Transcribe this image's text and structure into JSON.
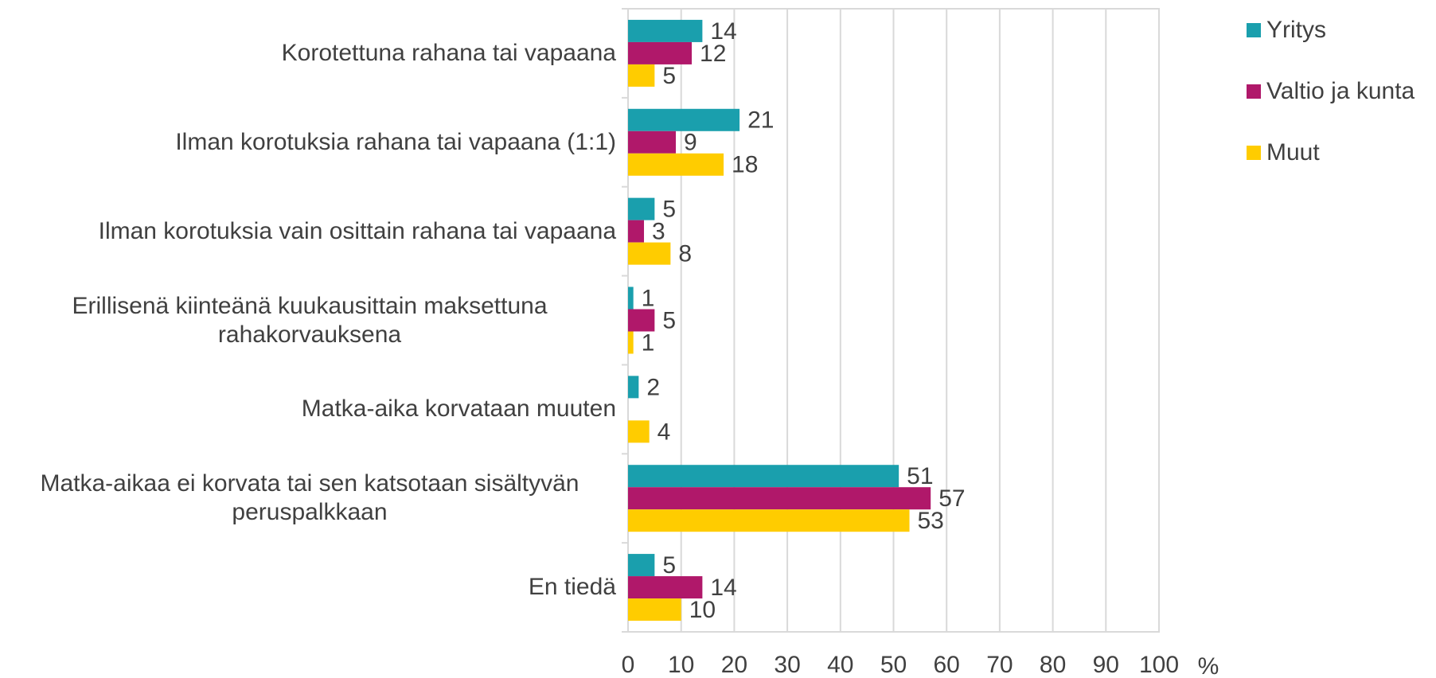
{
  "chart_data": {
    "type": "bar",
    "orientation": "horizontal",
    "categories": [
      "Korotettuna rahana tai vapaana",
      "Ilman korotuksia rahana tai vapaana (1:1)",
      "Ilman korotuksia vain osittain rahana tai vapaana",
      "Erillisenä kiinteänä kuukausittain maksettuna rahakorvauksena",
      "Matka-aika korvataan muuten",
      "Matka-aikaa ei korvata tai sen katsotaan sisältyvän peruspalkkaan",
      "En tiedä"
    ],
    "series": [
      {
        "name": "Yritys",
        "color": "#1a9fad",
        "values": [
          14,
          21,
          5,
          1,
          2,
          51,
          5
        ]
      },
      {
        "name": "Valtio ja kunta",
        "color": "#b0186a",
        "values": [
          12,
          9,
          3,
          5,
          null,
          57,
          14
        ]
      },
      {
        "name": "Muut",
        "color": "#ffcc00",
        "values": [
          5,
          18,
          8,
          1,
          4,
          53,
          10
        ]
      }
    ],
    "x_label": "%",
    "xlim": [
      0,
      100
    ],
    "xticks": [
      0,
      10,
      20,
      30,
      40,
      50,
      60,
      70,
      80,
      90,
      100
    ],
    "grid": true,
    "legend": "right"
  }
}
